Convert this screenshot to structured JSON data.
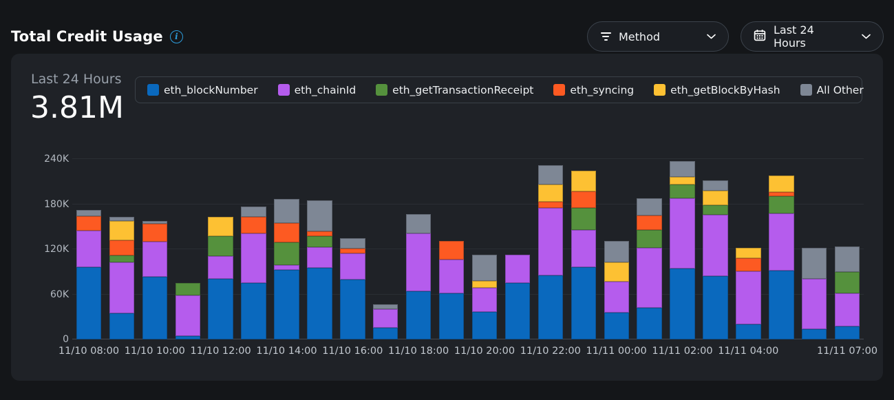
{
  "header": {
    "title": "Total Credit Usage"
  },
  "filters": {
    "method": {
      "label": "Method",
      "icon": "filter-lines-icon"
    },
    "time_range": {
      "label": "Last 24 Hours",
      "icon": "calendar-icon"
    }
  },
  "card": {
    "period_label": "Last 24 Hours",
    "total_value": "3.81M"
  },
  "colors": {
    "page_bg": "#141619",
    "card_bg": "#1f2227",
    "info_icon": "#2d9cdb",
    "gridline": "#2a2e34",
    "axis_text": "#b4bac2"
  },
  "chart_data": {
    "type": "bar",
    "stacked": true,
    "title": "Total Credit Usage",
    "ylabel": "",
    "xlabel": "",
    "ylim": [
      0,
      240000
    ],
    "grid": true,
    "legend_position": "top",
    "y_ticks": [
      {
        "label": "0",
        "value": 0
      },
      {
        "label": "60K",
        "value": 60000
      },
      {
        "label": "120K",
        "value": 120000
      },
      {
        "label": "180K",
        "value": 180000
      },
      {
        "label": "240K",
        "value": 240000
      }
    ],
    "categories": [
      "11/10 08:00",
      "11/10 09:00",
      "11/10 10:00",
      "11/10 11:00",
      "11/10 12:00",
      "11/10 13:00",
      "11/10 14:00",
      "11/10 15:00",
      "11/10 16:00",
      "11/10 17:00",
      "11/10 18:00",
      "11/10 19:00",
      "11/10 20:00",
      "11/10 21:00",
      "11/10 22:00",
      "11/10 23:00",
      "11/11 00:00",
      "11/11 01:00",
      "11/11 02:00",
      "11/11 03:00",
      "11/11 04:00",
      "11/11 05:00",
      "11/11 06:00",
      "11/11 07:00"
    ],
    "x_tick_labels": [
      {
        "index": 0,
        "label": "11/10 08:00"
      },
      {
        "index": 2,
        "label": "11/10 10:00"
      },
      {
        "index": 4,
        "label": "11/10 12:00"
      },
      {
        "index": 6,
        "label": "11/10 14:00"
      },
      {
        "index": 8,
        "label": "11/10 16:00"
      },
      {
        "index": 10,
        "label": "11/10 18:00"
      },
      {
        "index": 12,
        "label": "11/10 20:00"
      },
      {
        "index": 14,
        "label": "11/10 22:00"
      },
      {
        "index": 16,
        "label": "11/11 00:00"
      },
      {
        "index": 18,
        "label": "11/11 02:00"
      },
      {
        "index": 20,
        "label": "11/11 04:00"
      },
      {
        "index": 23,
        "label": "11/11 07:00"
      }
    ],
    "series": [
      {
        "name": "eth_blockNumber",
        "color": "#0a69be",
        "values": [
          96000,
          35000,
          83000,
          5000,
          81000,
          75000,
          93000,
          95000,
          80000,
          16000,
          64000,
          61000,
          37000,
          75000,
          85000,
          96000,
          36000,
          42000,
          94000,
          84000,
          20000,
          92000,
          14000,
          17000
        ]
      },
      {
        "name": "eth_chainId",
        "color": "#b55ced",
        "values": [
          49000,
          68000,
          47000,
          54000,
          30000,
          66000,
          6000,
          28000,
          35000,
          24000,
          77000,
          45000,
          32000,
          38000,
          90000,
          50000,
          41000,
          80000,
          94000,
          82000,
          71000,
          76000,
          67000,
          44000
        ]
      },
      {
        "name": "eth_getTransactionReceipt",
        "color": "#55913d",
        "values": [
          0,
          9000,
          0,
          16000,
          26000,
          0,
          30000,
          14000,
          0,
          0,
          0,
          0,
          0,
          0,
          0,
          29000,
          0,
          24000,
          18000,
          13000,
          0,
          23000,
          0,
          29000
        ]
      },
      {
        "name": "eth_syncing",
        "color": "#fd5a22",
        "values": [
          19000,
          20000,
          24000,
          0,
          0,
          22000,
          26000,
          7000,
          6000,
          0,
          0,
          25000,
          0,
          0,
          8000,
          22000,
          0,
          19000,
          0,
          0,
          17000,
          5000,
          0,
          0
        ]
      },
      {
        "name": "eth_getBlockByHash",
        "color": "#fdc133",
        "values": [
          0,
          26000,
          0,
          0,
          26000,
          0,
          0,
          0,
          0,
          0,
          0,
          0,
          9000,
          0,
          23000,
          27000,
          26000,
          0,
          10000,
          19000,
          14000,
          22000,
          0,
          0
        ]
      },
      {
        "name": "All Other",
        "color": "#7e8795",
        "values": [
          8000,
          5000,
          4000,
          0,
          0,
          14000,
          32000,
          41000,
          14000,
          7000,
          26000,
          0,
          35000,
          0,
          26000,
          0,
          28000,
          23000,
          21000,
          14000,
          0,
          0,
          41000,
          34000
        ]
      }
    ]
  }
}
